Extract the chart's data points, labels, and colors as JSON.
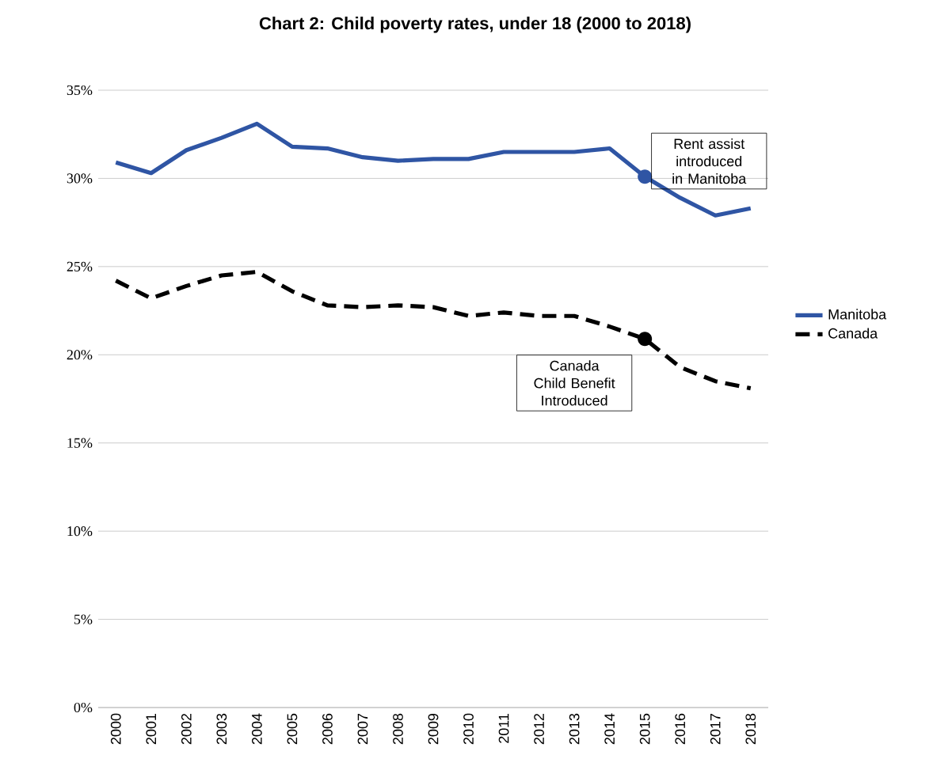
{
  "chart_data": {
    "type": "line",
    "title": "Chart 2: Child poverty rates, under 18 (2000 to 2018)",
    "categories": [
      "2000",
      "2001",
      "2002",
      "2003",
      "2004",
      "2005",
      "2006",
      "2007",
      "2008",
      "2009",
      "2010",
      "2011",
      "2012",
      "2013",
      "2014",
      "2015",
      "2016",
      "2017",
      "2018"
    ],
    "series": [
      {
        "name": "Manitoba",
        "color": "#2f55a4",
        "line_style": "solid",
        "values": [
          30.9,
          30.3,
          31.6,
          32.3,
          33.1,
          31.8,
          31.7,
          31.2,
          31.0,
          31.1,
          31.1,
          31.5,
          31.5,
          31.5,
          31.7,
          30.1,
          28.9,
          27.9,
          28.3
        ]
      },
      {
        "name": "Canada",
        "color": "#000000",
        "line_style": "dashed",
        "values": [
          24.2,
          23.2,
          23.9,
          24.5,
          24.7,
          23.6,
          22.8,
          22.7,
          22.8,
          22.7,
          22.2,
          22.4,
          22.2,
          22.2,
          21.6,
          20.9,
          19.3,
          18.5,
          18.1
        ]
      }
    ],
    "ylim": [
      0,
      35
    ],
    "yticks": [
      {
        "value": 0,
        "label": "0%"
      },
      {
        "value": 5,
        "label": "5%"
      },
      {
        "value": 10,
        "label": "10%"
      },
      {
        "value": 15,
        "label": "15%"
      },
      {
        "value": 20,
        "label": "20%"
      },
      {
        "value": 25,
        "label": "25%"
      },
      {
        "value": 30,
        "label": "30%"
      },
      {
        "value": 35,
        "label": "35%"
      }
    ],
    "grid": "y",
    "legend": "right",
    "marker": "none",
    "annotations": [
      {
        "text": "Rent assist introduced in Manitoba",
        "x": "2015",
        "y": 30.1
      },
      {
        "text": "Canada Child Benefit Introduced",
        "x": "2015",
        "y": 20.9
      }
    ]
  }
}
